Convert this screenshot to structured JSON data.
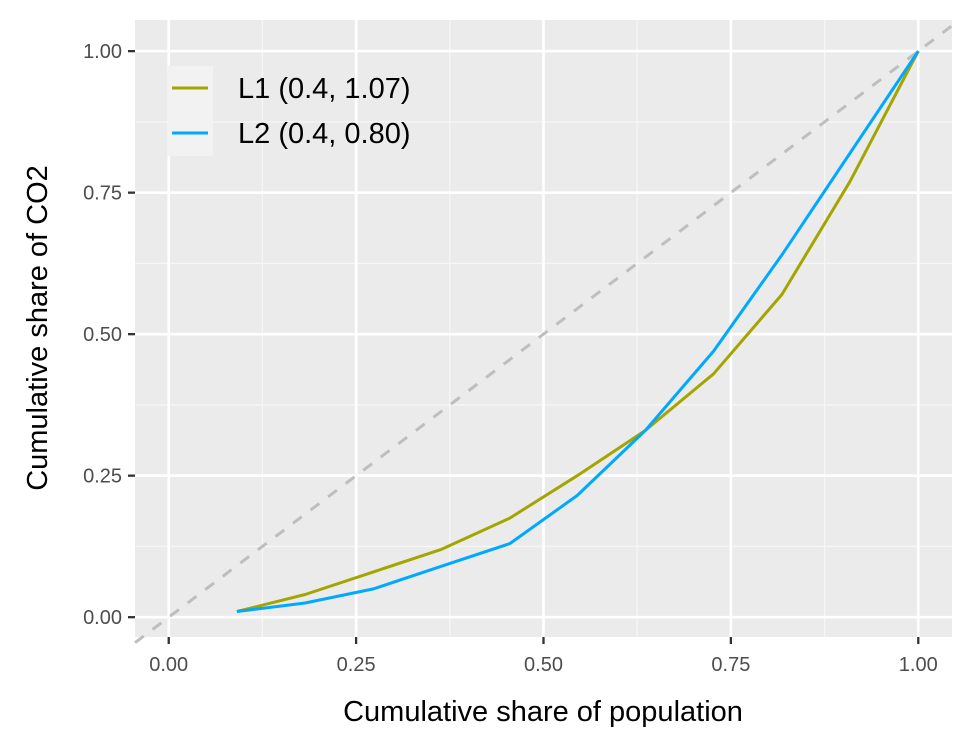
{
  "chart_data": {
    "type": "line",
    "title": "",
    "xlabel": "Cumulative share of population",
    "ylabel": "Cumulative share of CO2",
    "xlim": [
      -0.045,
      1.045
    ],
    "ylim": [
      -0.035,
      1.055
    ],
    "x_ticks": [
      0.0,
      0.25,
      0.5,
      0.75,
      1.0
    ],
    "x_tick_labels": [
      "0.00",
      "0.25",
      "0.50",
      "0.75",
      "1.00"
    ],
    "y_ticks": [
      0.0,
      0.25,
      0.5,
      0.75,
      1.0
    ],
    "y_tick_labels": [
      "0.00",
      "0.25",
      "0.50",
      "0.75",
      "1.00"
    ],
    "grid": true,
    "legend_position": "top-left",
    "reference_line": {
      "x": [
        -0.045,
        1.045
      ],
      "y": [
        -0.045,
        1.045
      ],
      "color": "#bebebe",
      "style": "dashed"
    },
    "series": [
      {
        "name": "L1 (0.4, 1.07)",
        "color": "#a3a500",
        "x": [
          0.091,
          0.182,
          0.273,
          0.364,
          0.455,
          0.545,
          0.636,
          0.727,
          0.818,
          0.909,
          1.0
        ],
        "y": [
          0.01,
          0.04,
          0.08,
          0.12,
          0.175,
          0.25,
          0.33,
          0.43,
          0.57,
          0.77,
          1.0
        ]
      },
      {
        "name": "L2 (0.4, 0.80)",
        "color": "#00a9ff",
        "x": [
          0.091,
          0.182,
          0.273,
          0.364,
          0.455,
          0.545,
          0.636,
          0.727,
          0.818,
          0.909,
          1.0
        ],
        "y": [
          0.01,
          0.025,
          0.05,
          0.09,
          0.13,
          0.215,
          0.33,
          0.47,
          0.64,
          0.82,
          1.0
        ]
      }
    ]
  }
}
